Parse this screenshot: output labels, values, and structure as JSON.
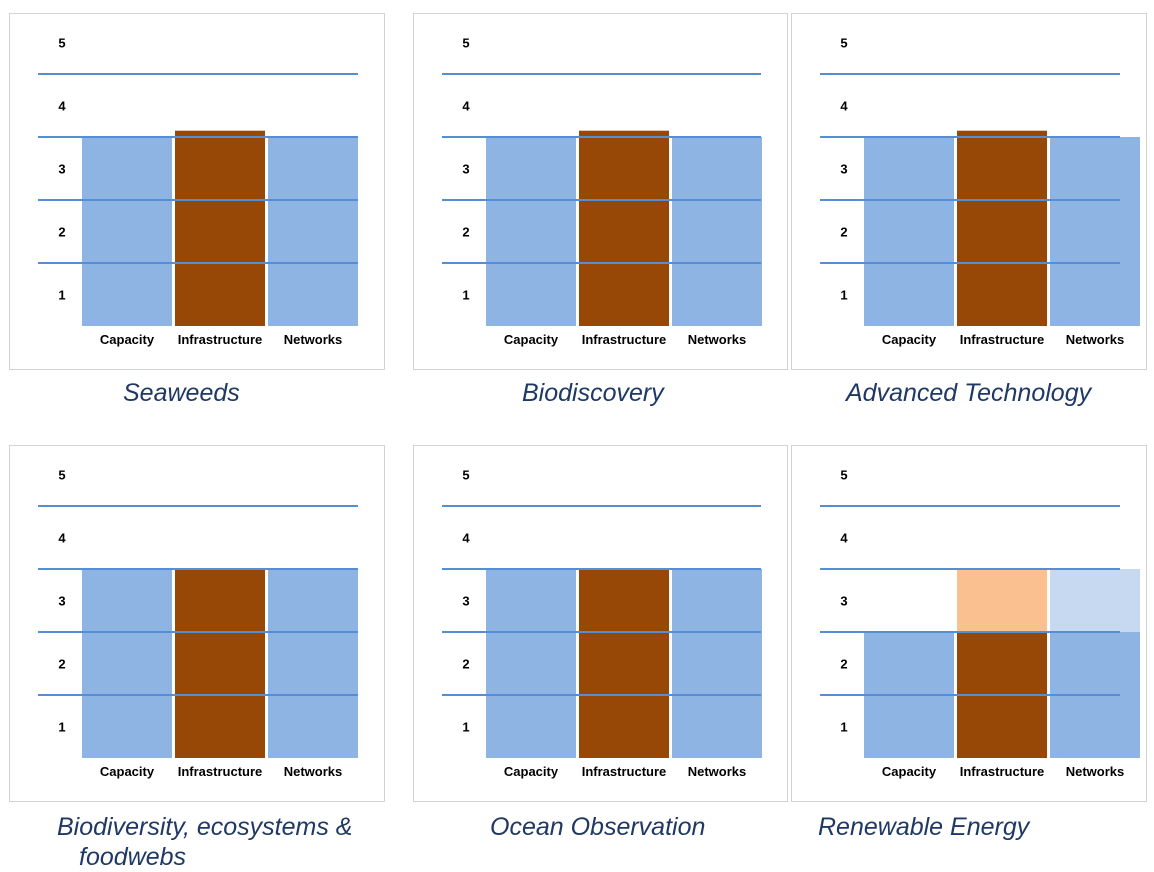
{
  "chart_data": [
    {
      "type": "bar",
      "caption": "Seaweeds",
      "categories": [
        "Capacity",
        "Infrastructure",
        "Networks"
      ],
      "values": [
        3,
        3.1,
        3
      ],
      "yticks": [
        "1",
        "2",
        "3",
        "4",
        "5"
      ],
      "ylim": [
        0,
        5
      ],
      "grid": true,
      "colors": [
        "#8eb4e3",
        "#974706",
        "#8eb4e3"
      ]
    },
    {
      "type": "bar",
      "caption": "Biodiscovery",
      "categories": [
        "Capacity",
        "Infrastructure",
        "Networks"
      ],
      "values": [
        3,
        3.1,
        3
      ],
      "yticks": [
        "1",
        "2",
        "3",
        "4",
        "5"
      ],
      "ylim": [
        0,
        5
      ],
      "grid": true,
      "colors": [
        "#8eb4e3",
        "#974706",
        "#8eb4e3"
      ]
    },
    {
      "type": "bar",
      "caption": "Advanced Technology",
      "categories": [
        "Capacity",
        "Infrastructure",
        "Networks"
      ],
      "values": [
        3,
        3.1,
        3
      ],
      "yticks": [
        "1",
        "2",
        "3",
        "4",
        "5"
      ],
      "ylim": [
        0,
        5
      ],
      "grid": true,
      "colors": [
        "#8eb4e3",
        "#974706",
        "#8eb4e3"
      ]
    },
    {
      "type": "bar",
      "caption": "Biodiversity, ecosystems &",
      "caption_line2": "foodwebs",
      "categories": [
        "Capacity",
        "Infrastructure",
        "Networks"
      ],
      "values": [
        3,
        3,
        3
      ],
      "yticks": [
        "1",
        "2",
        "3",
        "4",
        "5"
      ],
      "ylim": [
        0,
        5
      ],
      "grid": true,
      "colors": [
        "#8eb4e3",
        "#974706",
        "#8eb4e3"
      ]
    },
    {
      "type": "bar",
      "caption": "Ocean Observation",
      "categories": [
        "Capacity",
        "Infrastructure",
        "Networks"
      ],
      "values": [
        3,
        3,
        3
      ],
      "yticks": [
        "1",
        "2",
        "3",
        "4",
        "5"
      ],
      "ylim": [
        0,
        5
      ],
      "grid": true,
      "colors": [
        "#8eb4e3",
        "#974706",
        "#8eb4e3"
      ]
    },
    {
      "type": "bar",
      "caption": "Renewable Energy",
      "categories": [
        "Capacity",
        "Infrastructure",
        "Networks"
      ],
      "values": [
        2,
        2,
        2
      ],
      "target_values": [
        2,
        3,
        3
      ],
      "yticks": [
        "1",
        "2",
        "3",
        "4",
        "5"
      ],
      "ylim": [
        0,
        5
      ],
      "grid": true,
      "colors": [
        "#8eb4e3",
        "#974706",
        "#8eb4e3"
      ],
      "target_colors": [
        "#ffffff",
        "#fac090",
        "#c6d9f1"
      ]
    }
  ]
}
